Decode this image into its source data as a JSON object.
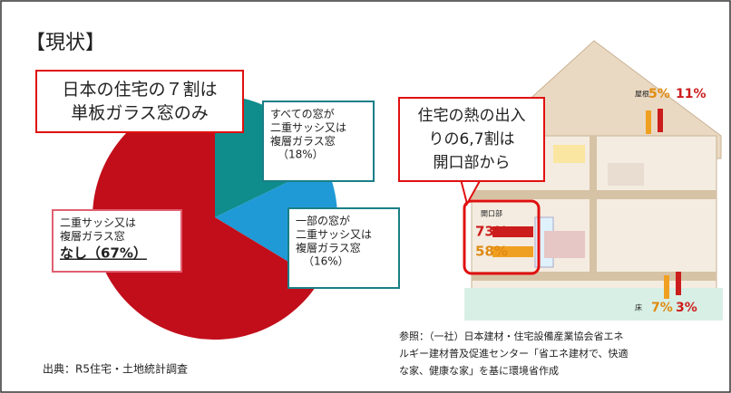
{
  "title": "【現状】",
  "callout": "日本の住宅の７割は\n単板ガラス窓のみ",
  "chart_data": {
    "type": "pie",
    "categories": [
      "すべての窓が\n二重サッシ又は\n複層ガラス窓",
      "一部の窓が\n二重サッシ又は\n複層ガラス窓",
      "二重サッシ又は\n複層ガラス窓"
    ],
    "values": [
      18,
      16,
      67
    ],
    "value_labels": [
      "（18%）",
      "（16%）",
      "なし（67%）"
    ],
    "colors": [
      "#0f8c8c",
      "#1f9ad6",
      "#c20e1a"
    ]
  },
  "source": "出典：R5住宅・土地統計調査",
  "illustration": {
    "callout": "住宅の熱の出入\nりの6,7割は\n開口部から",
    "roof": {
      "label": "屋根",
      "values": [
        "5%",
        "11%"
      ]
    },
    "opening": {
      "label": "開口部",
      "values": [
        "73%",
        "58%"
      ]
    },
    "floor": {
      "label": "床",
      "values": [
        "7%",
        "3%"
      ]
    }
  },
  "reference": "参照：（一社）日本建材・住宅設備産業協会省エネ\nルギー建材普及促進センター「省エネ建材で、快適\nな家、健康な家」を基に環境省作成"
}
